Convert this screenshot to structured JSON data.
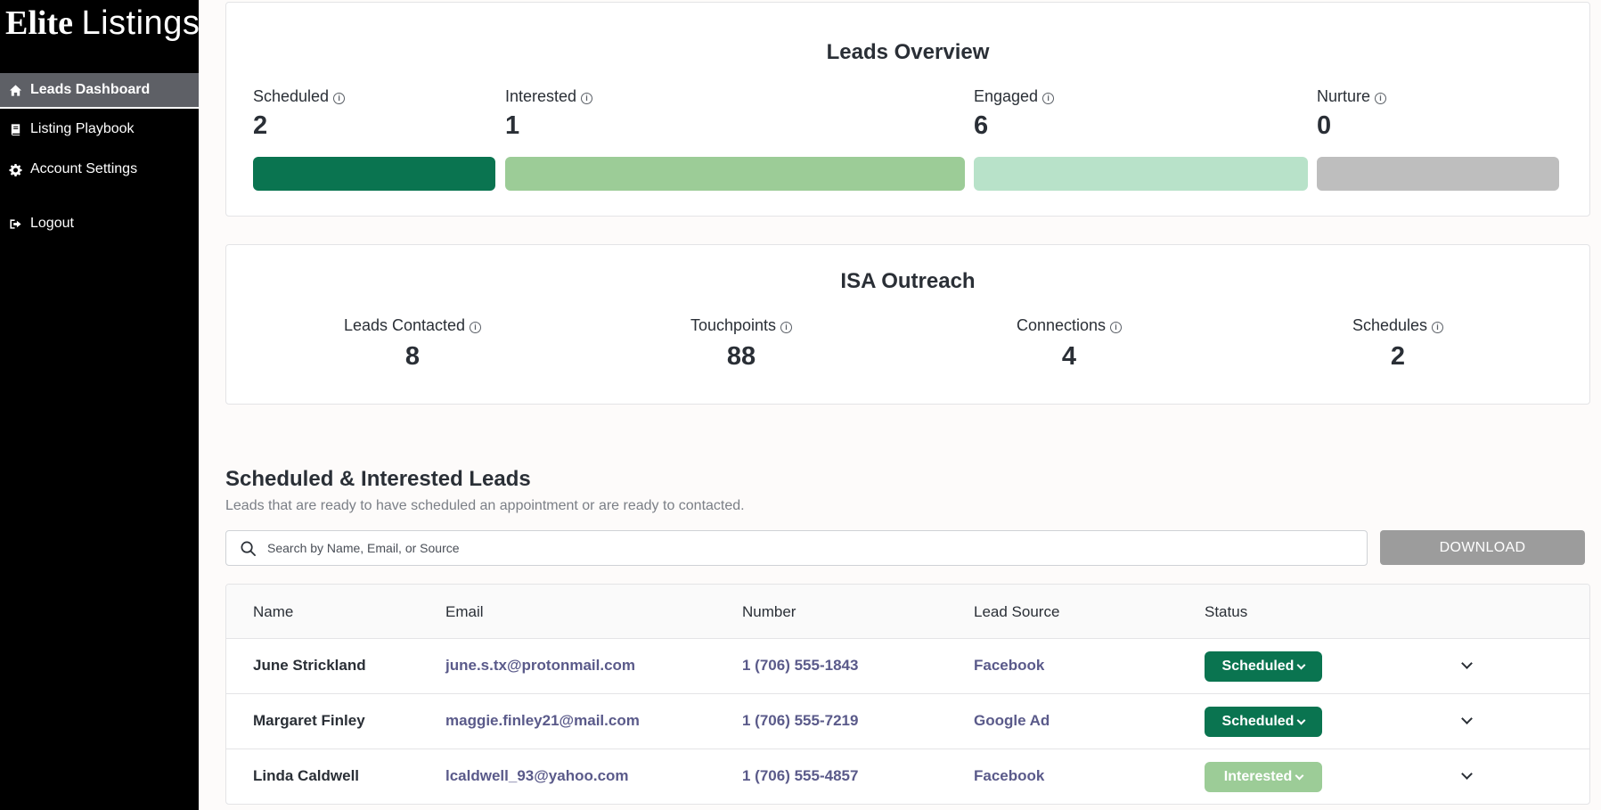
{
  "brand": {
    "part1": "Elite",
    "part2": "Listings"
  },
  "sidebar": {
    "items": [
      {
        "label": "Leads Dashboard",
        "icon": "home-icon",
        "active": true
      },
      {
        "label": "Listing Playbook",
        "icon": "book-icon",
        "active": false
      },
      {
        "label": "Account Settings",
        "icon": "gear-icon",
        "active": false
      },
      {
        "label": "Logout",
        "icon": "logout-icon",
        "active": false
      }
    ]
  },
  "leads_overview": {
    "title": "Leads Overview",
    "stats": [
      {
        "label": "Scheduled",
        "value": "2",
        "color": "#0a7450"
      },
      {
        "label": "Interested",
        "value": "1",
        "color": "#9ccc97"
      },
      {
        "label": "Engaged",
        "value": "6",
        "color": "#b8e2c9"
      },
      {
        "label": "Nurture",
        "value": "0",
        "color": "#bebebe"
      }
    ]
  },
  "isa_outreach": {
    "title": "ISA Outreach",
    "stats": [
      {
        "label": "Leads Contacted",
        "value": "8"
      },
      {
        "label": "Touchpoints",
        "value": "88"
      },
      {
        "label": "Connections",
        "value": "4"
      },
      {
        "label": "Schedules",
        "value": "2"
      }
    ]
  },
  "leads_section": {
    "title": "Scheduled & Interested Leads",
    "subtitle": "Leads that are ready to have scheduled an appointment or are ready to contacted.",
    "search_placeholder": "Search by Name, Email, or Source",
    "download_label": "DOWNLOAD"
  },
  "table": {
    "headers": [
      "Name",
      "Email",
      "Number",
      "Lead Source",
      "Status"
    ],
    "rows": [
      {
        "name": "June Strickland",
        "email": "june.s.tx@protonmail.com",
        "number": "1 (706) 555-1843",
        "source": "Facebook",
        "status": "Scheduled",
        "status_color": "#0a7450"
      },
      {
        "name": "Margaret Finley",
        "email": "maggie.finley21@mail.com",
        "number": "1 (706) 555-7219",
        "source": "Google Ad",
        "status": "Scheduled",
        "status_color": "#0a7450"
      },
      {
        "name": "Linda Caldwell",
        "email": "lcaldwell_93@yahoo.com",
        "number": "1 (706) 555-4857",
        "source": "Facebook",
        "status": "Interested",
        "status_color": "#9ccc97"
      }
    ]
  }
}
